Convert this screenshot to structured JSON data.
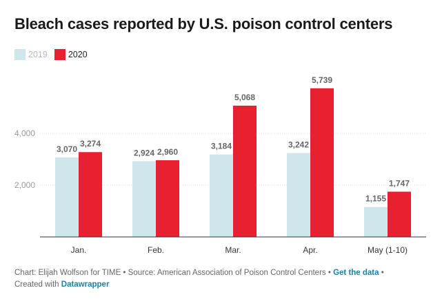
{
  "chart_data": {
    "type": "bar",
    "title": "Bleach cases reported by U.S. poison control centers",
    "categories": [
      "Jan.",
      "Feb.",
      "Mar.",
      "Apr.",
      "May (1-10)"
    ],
    "series": [
      {
        "name": "2019",
        "values": [
          3070,
          2924,
          3184,
          3242,
          1155
        ],
        "labels": [
          "3,070",
          "2,924",
          "3,184",
          "3,242",
          "1,155"
        ],
        "color": "#cfe7ec"
      },
      {
        "name": "2020",
        "values": [
          3274,
          2960,
          5068,
          5739,
          1747
        ],
        "labels": [
          "3,274",
          "2,960",
          "5,068",
          "5,739",
          "1,747"
        ],
        "color": "#e8202f"
      }
    ],
    "yticks": [
      2000,
      4000
    ],
    "ytick_labels": [
      "2,000",
      "4,000"
    ],
    "ylim": [
      0,
      6000
    ],
    "grid": true,
    "legend_position": "top-left"
  },
  "footer": {
    "line1_prefix": "Chart: Elijah Wolfson for TIME • Source: American Association of Poison Control Centers • ",
    "get_data": "Get the data",
    "line1_suffix": " •",
    "line2_prefix": "Created with ",
    "datawrapper": "Datawrapper"
  },
  "colors": {
    "series_2019": "#cfe7ec",
    "series_2020": "#e8202f",
    "grid": "#e0e0e0",
    "axis": "#333333",
    "link": "#1d81a2"
  }
}
